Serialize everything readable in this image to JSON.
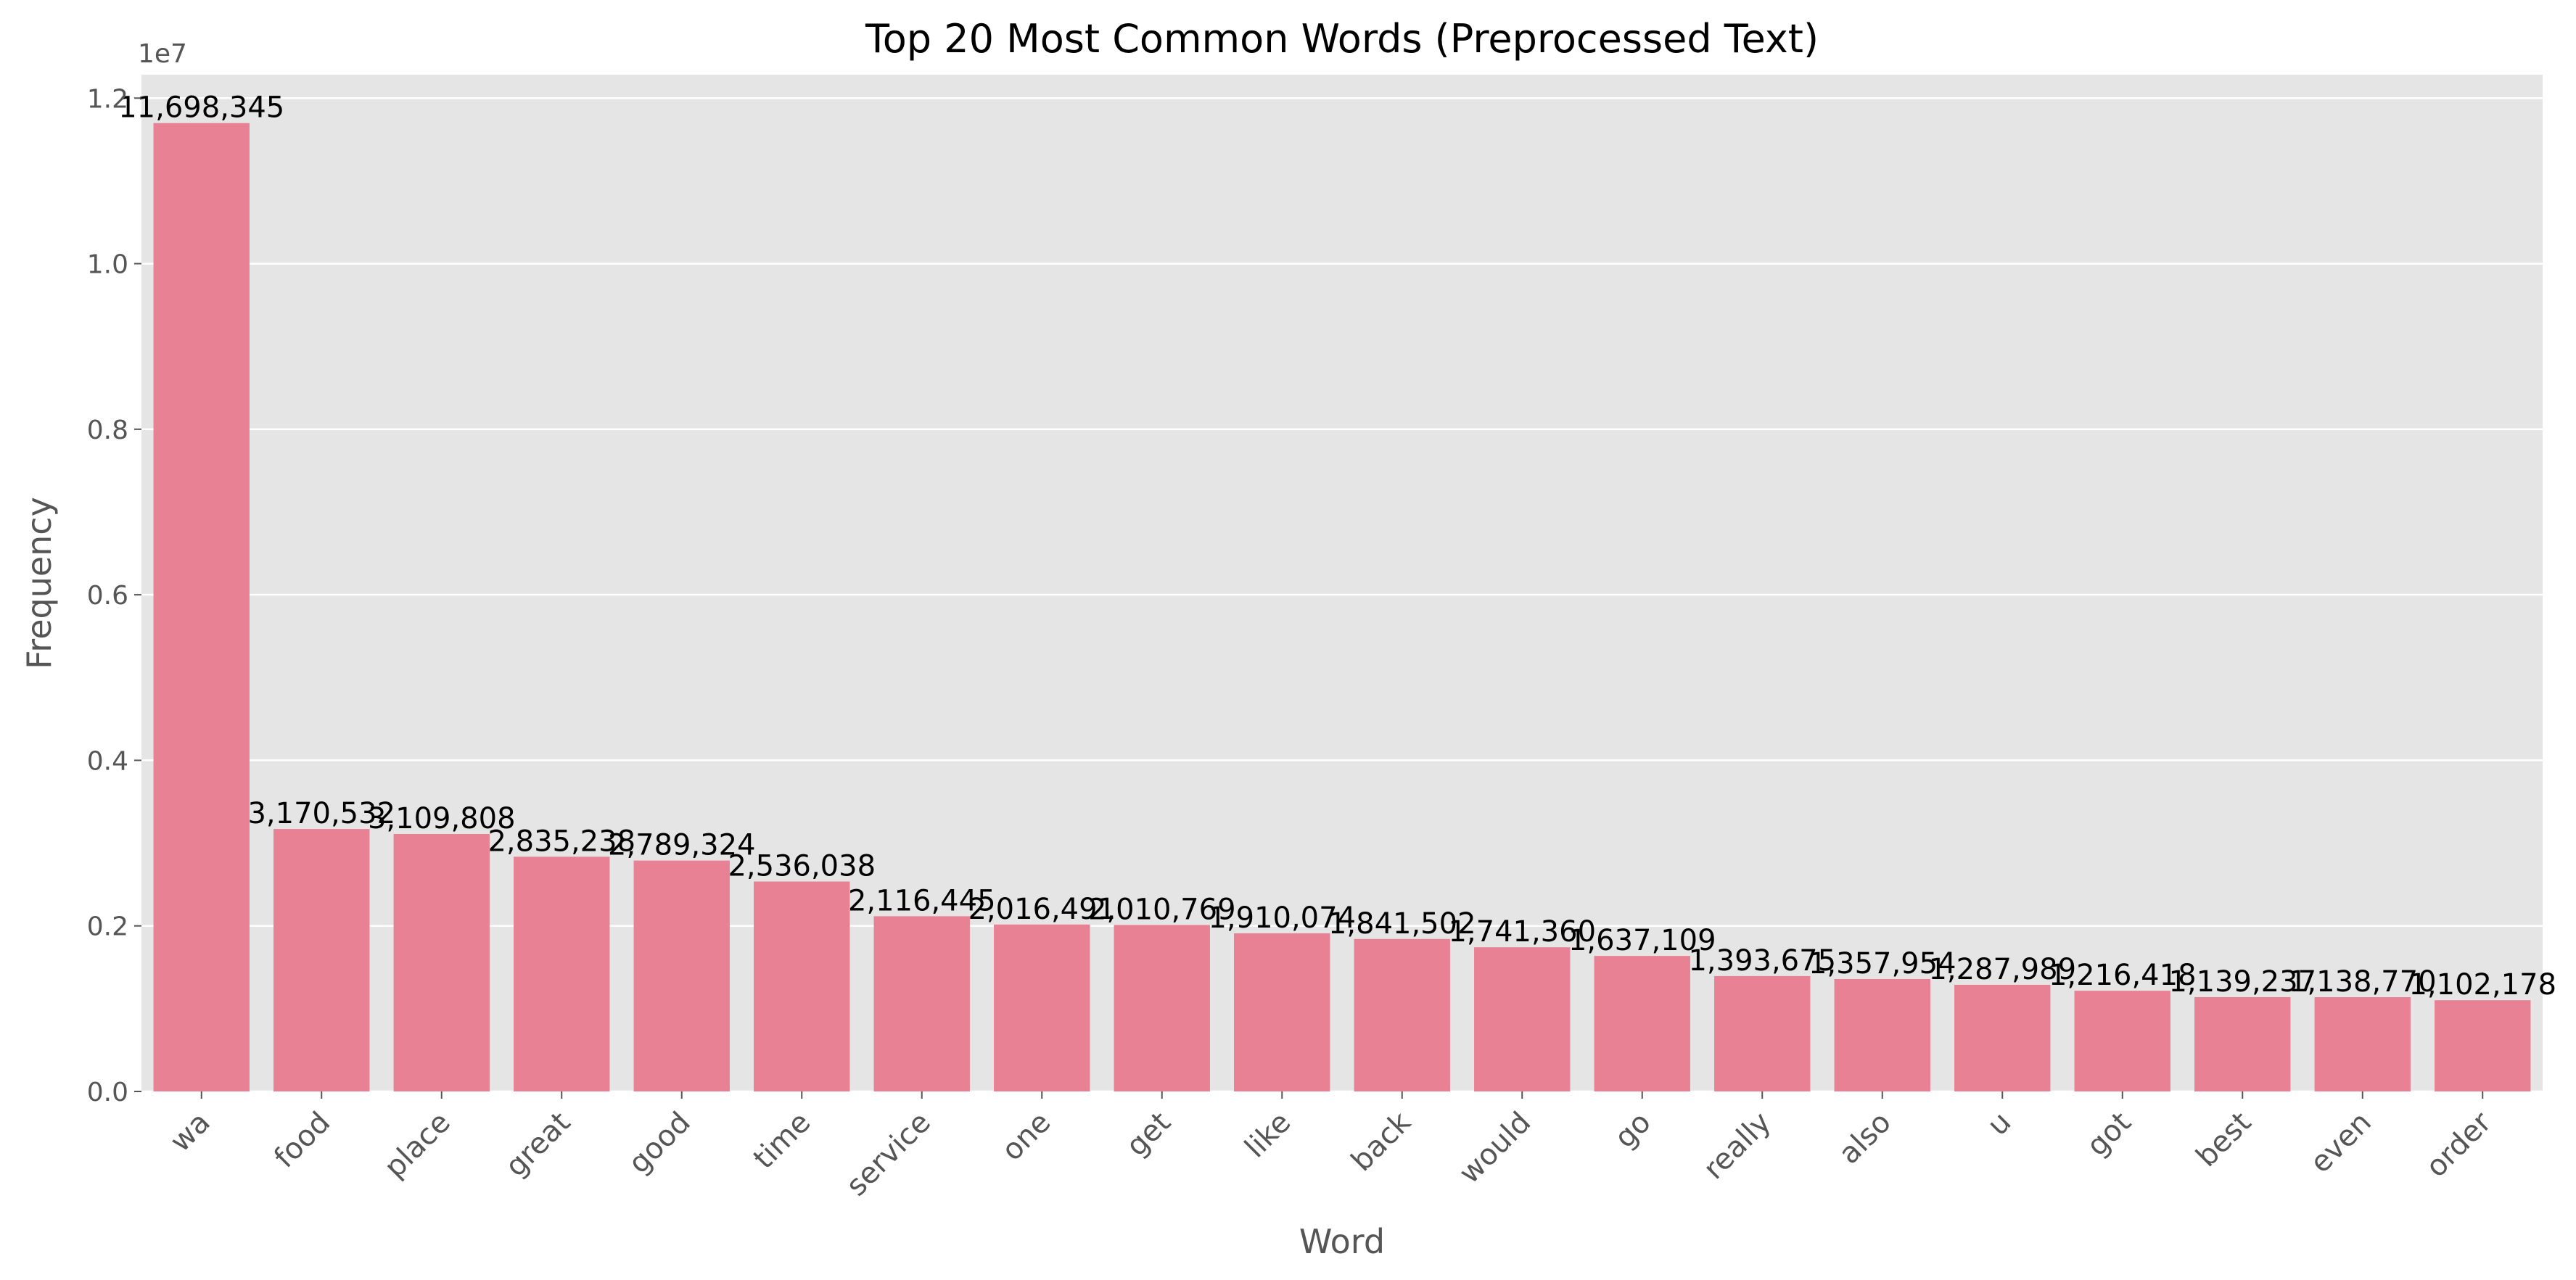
{
  "chart_data": {
    "type": "bar",
    "title": "Top 20 Most Common Words (Preprocessed Text)",
    "xlabel": "Word",
    "ylabel": "Frequency",
    "y_offset_label": "1e7",
    "categories": [
      "wa",
      "food",
      "place",
      "great",
      "good",
      "time",
      "service",
      "one",
      "get",
      "like",
      "back",
      "would",
      "go",
      "really",
      "also",
      "u",
      "got",
      "best",
      "even",
      "order"
    ],
    "values": [
      11698345,
      3170532,
      3109808,
      2835238,
      2789324,
      2536038,
      2116445,
      2016491,
      2010769,
      1910074,
      1841502,
      1741360,
      1637109,
      1393675,
      1357954,
      1287989,
      1216418,
      1139237,
      1138770,
      1102178
    ],
    "data_labels": [
      "11,698,345",
      "3,170,532",
      "3,109,808",
      "2,835,238",
      "2,789,324",
      "2,536,038",
      "2,116,445",
      "2,016,491",
      "2,010,769",
      "1,910,074",
      "1,841,502",
      "1,741,360",
      "1,637,109",
      "1,393,675",
      "1,357,954",
      "1,287,989",
      "1,216,418",
      "1,139,237",
      "1,138,770",
      "1,102,178"
    ],
    "y_ticks": [
      0,
      2000000,
      4000000,
      6000000,
      8000000,
      10000000,
      12000000
    ],
    "y_tick_labels": [
      "0.0",
      "0.2",
      "0.4",
      "0.6",
      "0.8",
      "1.0",
      "1.2"
    ],
    "ylim": [
      0,
      12282762
    ],
    "grid": true,
    "colors": {
      "bar": "#e88194",
      "plot_bg": "#e5e5e5",
      "grid": "#ffffff"
    }
  }
}
